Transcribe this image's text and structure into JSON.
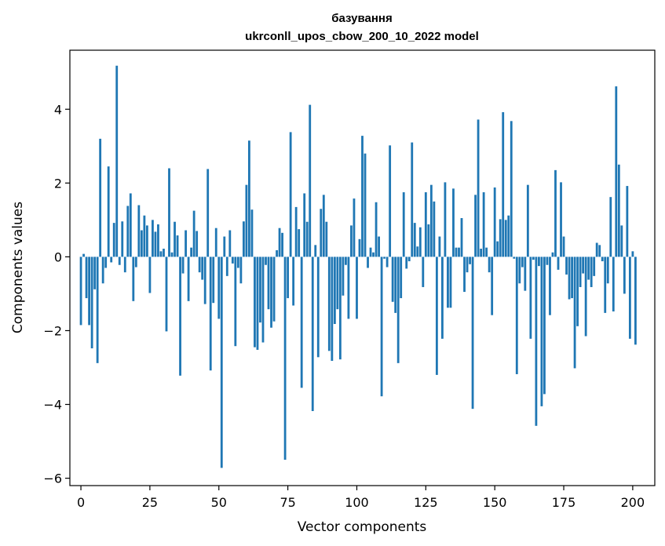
{
  "chart_data": {
    "type": "bar",
    "title": "базування",
    "subtitle": "ukrconll_upos_cbow_200_10_2022 model",
    "xlabel": "Vector components",
    "ylabel": "Components values",
    "xlim": [
      -4,
      208
    ],
    "ylim": [
      -6.2,
      5.6
    ],
    "xticks": [
      0,
      25,
      50,
      75,
      100,
      125,
      150,
      175,
      200
    ],
    "yticks": [
      -6,
      -4,
      -2,
      0,
      2,
      4
    ],
    "grid": false,
    "colors": {
      "bar": "#1f77b4"
    },
    "values": [
      -1.85,
      0.08,
      -1.12,
      -1.85,
      -2.48,
      -0.88,
      -2.88,
      3.2,
      -0.72,
      -0.3,
      2.45,
      -0.15,
      0.92,
      5.18,
      -0.22,
      0.96,
      -0.42,
      1.38,
      1.72,
      -1.2,
      -0.28,
      1.4,
      0.72,
      1.12,
      0.85,
      -0.98,
      1.0,
      0.68,
      0.88,
      0.15,
      0.22,
      -2.02,
      2.4,
      0.12,
      0.95,
      0.58,
      -3.22,
      -0.45,
      0.72,
      -1.2,
      0.25,
      1.25,
      0.7,
      -0.42,
      -0.62,
      -1.28,
      2.38,
      -3.08,
      -1.25,
      0.78,
      -1.68,
      -5.72,
      0.55,
      -0.52,
      0.72,
      -0.18,
      -2.42,
      -0.3,
      -0.72,
      0.96,
      1.95,
      3.15,
      1.28,
      -2.45,
      -2.52,
      -1.78,
      -2.32,
      -0.22,
      -1.42,
      -1.92,
      -1.75,
      0.18,
      0.78,
      0.65,
      -5.5,
      -1.12,
      3.38,
      -1.32,
      1.35,
      0.75,
      -3.55,
      1.72,
      0.95,
      4.12,
      -4.18,
      0.32,
      -2.72,
      1.3,
      1.68,
      0.95,
      -2.55,
      -2.82,
      -1.82,
      -1.42,
      -2.78,
      -1.05,
      -0.22,
      -1.68,
      0.85,
      1.58,
      -1.68,
      0.48,
      3.28,
      2.8,
      -0.3,
      0.25,
      0.12,
      1.48,
      0.55,
      -3.78,
      -0.05,
      -0.28,
      3.02,
      -1.22,
      -1.52,
      -2.88,
      -1.12,
      1.75,
      -0.32,
      -0.12,
      3.1,
      0.92,
      0.28,
      0.8,
      -0.82,
      1.75,
      0.88,
      1.95,
      1.5,
      -3.2,
      0.55,
      -2.22,
      2.02,
      -1.38,
      -1.38,
      1.85,
      0.25,
      0.25,
      1.05,
      -0.95,
      -0.42,
      -0.2,
      -4.12,
      1.68,
      3.72,
      0.22,
      1.75,
      0.25,
      -0.42,
      -1.58,
      1.88,
      0.42,
      1.02,
      3.92,
      1.0,
      1.12,
      3.68,
      -0.05,
      -3.18,
      -0.72,
      -0.28,
      -0.92,
      1.95,
      -2.22,
      -0.08,
      -4.58,
      -0.25,
      -4.05,
      -3.72,
      -0.22,
      -1.58,
      0.12,
      2.35,
      -0.35,
      2.02,
      0.55,
      -0.48,
      -1.15,
      -1.12,
      -3.02,
      -1.88,
      -0.82,
      -0.45,
      -2.15,
      -0.62,
      -0.82,
      -0.52,
      0.38,
      0.32,
      -0.12,
      -1.52,
      -0.72,
      1.62,
      -1.48,
      4.62,
      2.5,
      0.85,
      -1.0,
      1.92,
      -2.22,
      0.15,
      -2.38
    ]
  }
}
